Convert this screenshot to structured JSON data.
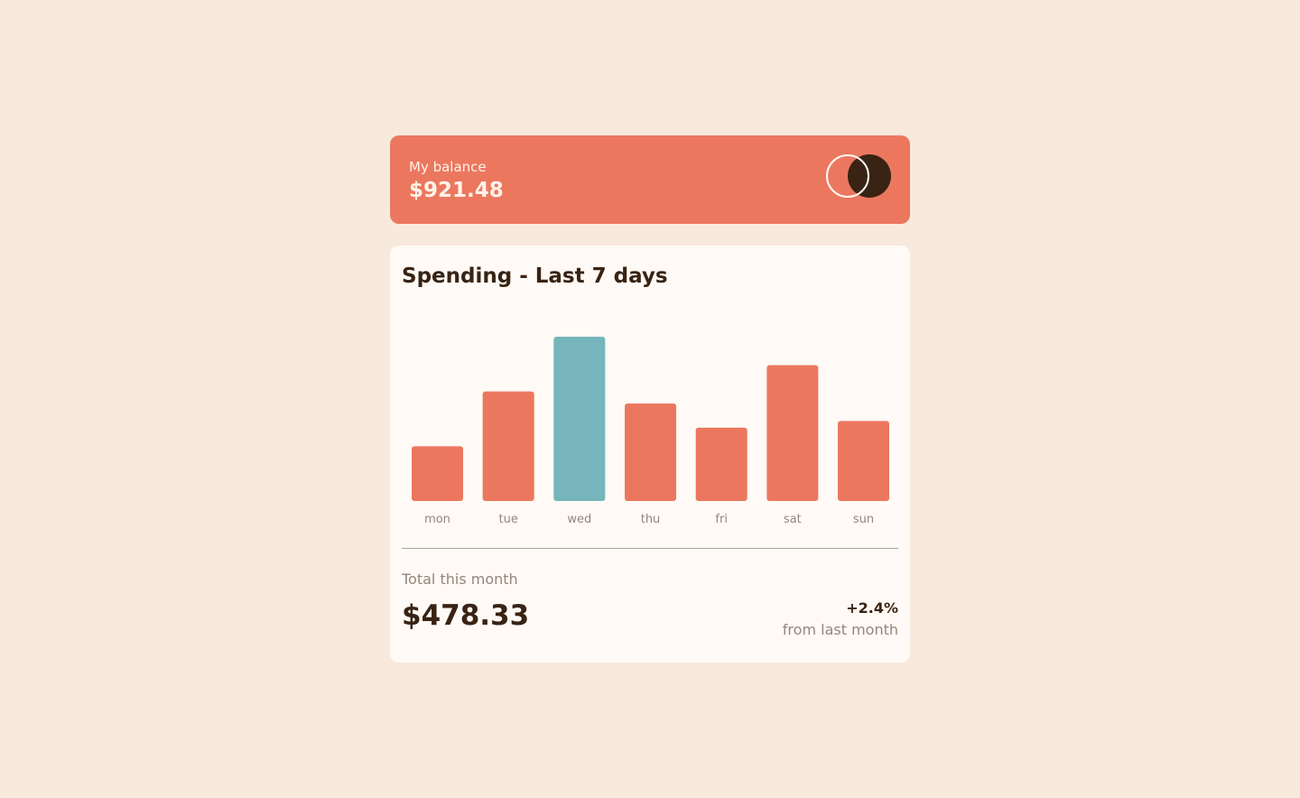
{
  "balance": {
    "label": "My balance",
    "amount": "$921.48",
    "logo_icon": "overlapping-circles-logo"
  },
  "spending": {
    "title": "Spending - Last 7 days"
  },
  "chart_data": {
    "type": "bar",
    "categories": [
      "mon",
      "tue",
      "wed",
      "thu",
      "fri",
      "sat",
      "sun"
    ],
    "values": [
      17.45,
      34.91,
      52.36,
      31.07,
      23.39,
      43.28,
      25.48
    ],
    "highlight_index": 2,
    "ylim": [
      0,
      52.36
    ],
    "grid": false,
    "colors": {
      "bar": "#ec775f",
      "highlight": "#76b5bc"
    }
  },
  "summary": {
    "total_label": "Total this month",
    "total_amount": "$478.33",
    "change_value": "+2.4%",
    "change_label": "from last month"
  },
  "colors": {
    "background": "#f8e9dd",
    "accent": "#ec775f",
    "highlight": "#76b5bc",
    "dark": "#382314",
    "muted": "#93867b",
    "card": "#fffaf5"
  }
}
